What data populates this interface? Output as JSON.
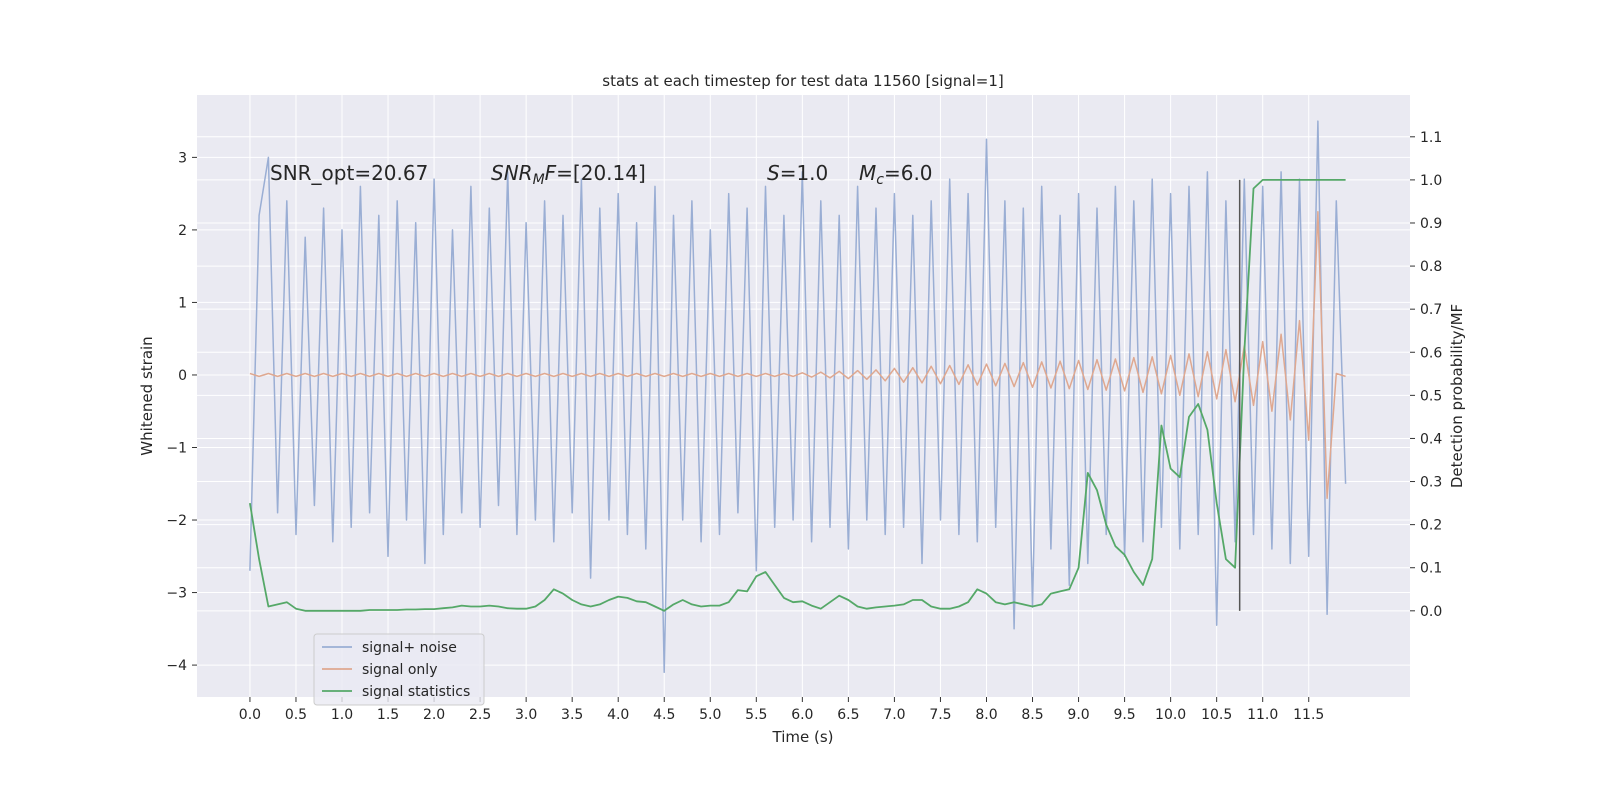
{
  "chart_data": {
    "type": "line",
    "title": "stats at each timestep for test data 11560 [signal=1]",
    "xlabel": "Time (s)",
    "ylabel": "Whitened strain",
    "y2label": "Detection probability/MF",
    "grid": true,
    "legend": "lower left",
    "xlim": [
      -0.575,
      12.6
    ],
    "ylim": [
      -4.44,
      3.86
    ],
    "y2lim": [
      -0.2,
      1.197
    ],
    "xticks": [
      {
        "value": 0,
        "label": "0.0"
      },
      0.5,
      {
        "value": 1,
        "label": "1.0"
      },
      1.5,
      {
        "value": 2,
        "label": "2.0"
      },
      2.5,
      {
        "value": 3,
        "label": "3.0"
      },
      3.5,
      {
        "value": 4,
        "label": "4.0"
      },
      4.5,
      {
        "value": 5,
        "label": "5.0"
      },
      5.5,
      {
        "value": 6,
        "label": "6.0"
      },
      6.5,
      {
        "value": 7,
        "label": "7.0"
      },
      7.5,
      {
        "value": 8,
        "label": "8.0"
      },
      8.5,
      {
        "value": 9,
        "label": "9.0"
      },
      9.5,
      {
        "value": 10,
        "label": "10.0"
      },
      10.5,
      {
        "value": 11,
        "label": "11.0"
      },
      11.5
    ],
    "yticks": [
      {
        "value": -4,
        "label": "−4"
      },
      {
        "value": -3,
        "label": "−3"
      },
      {
        "value": -2,
        "label": "−2"
      },
      {
        "value": -1,
        "label": "−1"
      },
      0,
      1,
      2,
      3
    ],
    "y2ticks": [
      {
        "value": 0,
        "label": "0.0"
      },
      0.1,
      0.2,
      0.3,
      0.4,
      0.5,
      0.6,
      0.7,
      0.8,
      0.9,
      {
        "value": 1,
        "label": "1.0"
      },
      1.1
    ],
    "annotations": [
      {
        "parts": [
          {
            "text": "SNR_opt=20.67"
          }
        ]
      },
      {
        "parts": [
          {
            "text": "SNR",
            "italic": true
          },
          {
            "text": "M",
            "italic": true,
            "sub": true
          },
          {
            "text": "F",
            "italic": true
          },
          {
            "text": "=[20.14]"
          }
        ]
      },
      {
        "parts": [
          {
            "text": "S",
            "italic": true
          },
          {
            "text": "=1.0"
          }
        ]
      },
      {
        "parts": [
          {
            "text": "M",
            "italic": true
          },
          {
            "text": "c",
            "italic": true,
            "sub": true
          },
          {
            "text": "=6.0"
          }
        ]
      }
    ],
    "vline": {
      "x": 10.75,
      "y2": [
        0,
        1
      ],
      "color": "#555555"
    },
    "x": [
      0,
      0.1,
      0.2,
      0.3,
      0.4,
      0.5,
      0.6,
      0.7,
      0.8,
      0.9,
      1,
      1.1,
      1.2,
      1.3,
      1.4,
      1.5,
      1.6,
      1.7,
      1.8,
      1.9,
      2,
      2.1,
      2.2,
      2.3,
      2.4,
      2.5,
      2.6,
      2.7,
      2.8,
      2.9,
      3,
      3.1,
      3.2,
      3.3,
      3.4,
      3.5,
      3.6,
      3.7,
      3.8,
      3.9,
      4,
      4.1,
      4.2,
      4.3,
      4.4,
      4.5,
      4.6,
      4.7,
      4.8,
      4.9,
      5,
      5.1,
      5.2,
      5.3,
      5.4,
      5.5,
      5.6,
      5.7,
      5.8,
      5.9,
      6,
      6.1,
      6.2,
      6.3,
      6.4,
      6.5,
      6.6,
      6.7,
      6.8,
      6.9,
      7,
      7.1,
      7.2,
      7.3,
      7.4,
      7.5,
      7.6,
      7.7,
      7.8,
      7.9,
      8,
      8.1,
      8.2,
      8.3,
      8.4,
      8.5,
      8.6,
      8.7,
      8.8,
      8.9,
      9,
      9.1,
      9.2,
      9.3,
      9.4,
      9.5,
      9.6,
      9.7,
      9.8,
      9.9,
      10,
      10.1,
      10.2,
      10.3,
      10.4,
      10.5,
      10.6,
      10.7,
      10.8,
      10.9,
      11,
      11.1,
      11.2,
      11.3,
      11.4,
      11.5,
      11.6,
      11.7,
      11.8,
      11.9
    ],
    "series": [
      {
        "name": "signal+ noise",
        "color": "#9aaed4",
        "values": [
          -2.7,
          2.2,
          3.0,
          -1.9,
          2.4,
          -2.2,
          1.9,
          -1.8,
          2.3,
          -2.3,
          2.0,
          -2.1,
          2.6,
          -1.9,
          2.2,
          -2.5,
          2.4,
          -2.0,
          2.1,
          -2.6,
          2.7,
          -2.2,
          2.0,
          -1.9,
          2.6,
          -2.1,
          2.3,
          -1.8,
          2.8,
          -2.2,
          2.1,
          -2.0,
          2.4,
          -2.3,
          2.2,
          -1.9,
          2.7,
          -2.8,
          2.3,
          -2.0,
          2.5,
          -2.2,
          2.1,
          -2.4,
          2.6,
          -4.1,
          2.2,
          -2.0,
          2.4,
          -2.3,
          2.0,
          -2.2,
          2.5,
          -1.9,
          2.3,
          -2.7,
          2.6,
          -2.1,
          2.2,
          -2.0,
          2.8,
          -2.3,
          2.4,
          -2.1,
          2.2,
          -2.4,
          2.6,
          -2.0,
          2.3,
          -2.2,
          2.5,
          -2.1,
          2.2,
          -2.6,
          2.4,
          -2.0,
          2.7,
          -2.2,
          2.5,
          -2.3,
          3.25,
          -2.1,
          2.4,
          -3.5,
          2.3,
          -3.2,
          2.6,
          -2.4,
          2.2,
          -2.9,
          2.5,
          -2.6,
          2.3,
          -2.2,
          2.6,
          -2.5,
          2.4,
          -2.3,
          2.7,
          -2.1,
          2.5,
          -2.4,
          2.6,
          -2.2,
          2.8,
          -3.45,
          2.4,
          -2.3,
          2.7,
          -2.2,
          2.6,
          -2.4,
          2.8,
          -2.6,
          2.7,
          -2.5,
          3.5,
          -3.3,
          2.4,
          -1.5
        ]
      },
      {
        "name": "signal only",
        "color": "#dfa890",
        "values": [
          0.02,
          -0.02,
          0.02,
          -0.02,
          0.02,
          -0.02,
          0.02,
          -0.02,
          0.02,
          -0.02,
          0.02,
          -0.02,
          0.02,
          -0.02,
          0.02,
          -0.02,
          0.02,
          -0.02,
          0.02,
          -0.02,
          0.02,
          -0.02,
          0.02,
          -0.02,
          0.02,
          -0.02,
          0.02,
          -0.02,
          0.02,
          -0.02,
          0.02,
          -0.02,
          0.02,
          -0.02,
          0.02,
          -0.02,
          0.02,
          -0.02,
          0.02,
          -0.02,
          0.02,
          -0.02,
          0.02,
          -0.02,
          0.02,
          -0.02,
          0.02,
          -0.02,
          0.02,
          -0.02,
          0.02,
          -0.02,
          0.02,
          -0.02,
          0.02,
          -0.02,
          0.02,
          -0.02,
          0.02,
          -0.02,
          0.03,
          -0.03,
          0.04,
          -0.04,
          0.05,
          -0.05,
          0.06,
          -0.06,
          0.07,
          -0.08,
          0.09,
          -0.1,
          0.1,
          -0.11,
          0.12,
          -0.12,
          0.13,
          -0.13,
          0.14,
          -0.14,
          0.15,
          -0.15,
          0.16,
          -0.16,
          0.17,
          -0.17,
          0.18,
          -0.18,
          0.19,
          -0.19,
          0.2,
          -0.2,
          0.21,
          -0.21,
          0.22,
          -0.22,
          0.24,
          -0.24,
          0.25,
          -0.26,
          0.27,
          -0.28,
          0.29,
          -0.3,
          0.32,
          -0.33,
          0.35,
          -0.37,
          0.4,
          -0.42,
          0.46,
          -0.5,
          0.56,
          -0.62,
          0.75,
          -0.9,
          2.25,
          -1.7,
          0.02,
          -0.02
        ]
      },
      {
        "name": "signal statistics",
        "color": "#55a868",
        "axis": "y2",
        "values": [
          0.25,
          0.12,
          0.01,
          0.015,
          0.02,
          0.005,
          0.0,
          0.0,
          0.0,
          0.0,
          0.0,
          0.0,
          0.0,
          0.002,
          0.002,
          0.002,
          0.002,
          0.003,
          0.003,
          0.004,
          0.004,
          0.006,
          0.008,
          0.012,
          0.01,
          0.01,
          0.012,
          0.01,
          0.006,
          0.005,
          0.005,
          0.01,
          0.025,
          0.05,
          0.04,
          0.025,
          0.015,
          0.01,
          0.015,
          0.025,
          0.033,
          0.03,
          0.022,
          0.02,
          0.01,
          0.0,
          0.015,
          0.025,
          0.015,
          0.01,
          0.012,
          0.012,
          0.02,
          0.048,
          0.045,
          0.08,
          0.09,
          0.06,
          0.03,
          0.02,
          0.022,
          0.012,
          0.005,
          0.02,
          0.035,
          0.025,
          0.01,
          0.005,
          0.008,
          0.01,
          0.012,
          0.015,
          0.025,
          0.025,
          0.01,
          0.005,
          0.005,
          0.01,
          0.02,
          0.05,
          0.04,
          0.02,
          0.015,
          0.02,
          0.015,
          0.01,
          0.015,
          0.04,
          0.045,
          0.05,
          0.1,
          0.32,
          0.28,
          0.2,
          0.15,
          0.13,
          0.09,
          0.06,
          0.12,
          0.43,
          0.33,
          0.31,
          0.45,
          0.48,
          0.42,
          0.25,
          0.12,
          0.1,
          0.6,
          0.98,
          1.0,
          1.0,
          1.0,
          1.0,
          1.0,
          1.0,
          1.0,
          1.0,
          1.0,
          1.0
        ]
      }
    ]
  }
}
